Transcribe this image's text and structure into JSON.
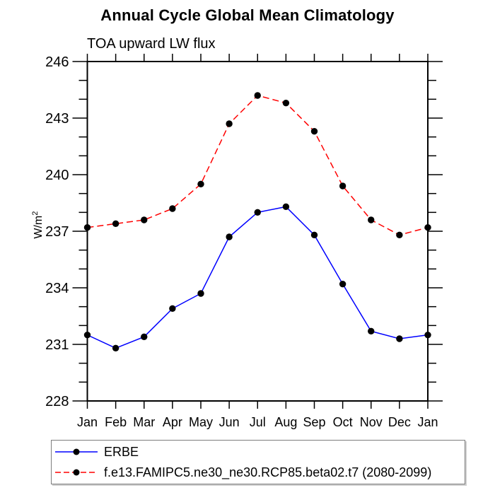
{
  "chart_data": {
    "type": "line",
    "title": "Annual Cycle Global Mean Climatology",
    "subtitle": "TOA upward LW flux",
    "ylabel": {
      "text": "W/m",
      "sup": "2"
    },
    "xlabel": "",
    "x_categories": [
      "Jan",
      "Feb",
      "Mar",
      "Apr",
      "May",
      "Jun",
      "Jul",
      "Aug",
      "Sep",
      "Oct",
      "Nov",
      "Dec",
      "Jan"
    ],
    "ylim": [
      228,
      246
    ],
    "ytick_major_step": 3,
    "ytick_minor_step": 1,
    "grid": false,
    "axis_color": "#000000",
    "background_color": "#ffffff",
    "legend_position": "bottom-left-box",
    "series": [
      {
        "name": "ERBE",
        "color": "#0000ff",
        "line_style": "solid",
        "marker": "circle",
        "marker_color": "#000000",
        "values": [
          231.5,
          230.8,
          231.4,
          232.9,
          233.7,
          236.7,
          238.0,
          238.3,
          236.8,
          234.2,
          231.7,
          231.3,
          231.5
        ]
      },
      {
        "name": "f.e13.FAMIPC5.ne30_ne30.RCP85.beta02.t7 (2080-2099)",
        "color": "#ff0000",
        "line_style": "dashed",
        "marker": "circle",
        "marker_color": "#000000",
        "values": [
          237.2,
          237.4,
          237.6,
          238.2,
          239.5,
          242.7,
          244.2,
          243.8,
          242.3,
          239.4,
          237.6,
          236.8,
          237.2
        ]
      }
    ]
  }
}
